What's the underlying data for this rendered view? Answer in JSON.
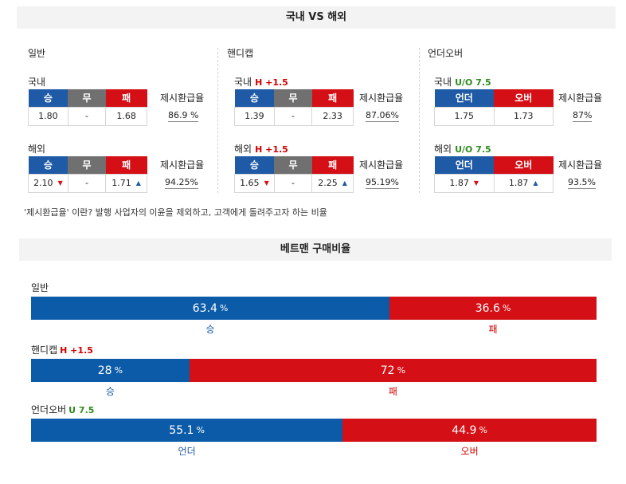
{
  "section1": {
    "title": "국내 VS 해외"
  },
  "columns": [
    {
      "header": "일반",
      "domestic": {
        "label": "국내",
        "sub": "",
        "headers": [
          "승",
          "무",
          "패"
        ],
        "values": [
          "1.80",
          "-",
          "1.68"
        ],
        "trends": [
          "",
          "",
          ""
        ],
        "return_label": "제시환급율",
        "return_value": "86.9 %"
      },
      "overseas": {
        "label": "해외",
        "sub": "",
        "headers": [
          "승",
          "무",
          "패"
        ],
        "values": [
          "2.10",
          "-",
          "1.71"
        ],
        "trends": [
          "down",
          "",
          "up"
        ],
        "return_label": "제시환급율",
        "return_value": "94.25%"
      }
    },
    {
      "header": "핸디캡",
      "domestic": {
        "label": "국내",
        "sub": "H +1.5",
        "headers": [
          "승",
          "무",
          "패"
        ],
        "values": [
          "1.39",
          "-",
          "2.33"
        ],
        "trends": [
          "",
          "",
          ""
        ],
        "return_label": "제시환급율",
        "return_value": "87.06%"
      },
      "overseas": {
        "label": "해외",
        "sub": "H +1.5",
        "headers": [
          "승",
          "무",
          "패"
        ],
        "values": [
          "1.65",
          "-",
          "2.25"
        ],
        "trends": [
          "down",
          "",
          "up"
        ],
        "return_label": "제시환급율",
        "return_value": "95.19%"
      }
    },
    {
      "header": "언더오버",
      "domestic": {
        "label": "국내",
        "sub": "U/O 7.5",
        "headers": [
          "언더",
          "오버"
        ],
        "values": [
          "1.75",
          "1.73"
        ],
        "trends": [
          "",
          ""
        ],
        "return_label": "제시환급율",
        "return_value": "87%"
      },
      "overseas": {
        "label": "해외",
        "sub": "U/O 7.5",
        "headers": [
          "언더",
          "오버"
        ],
        "values": [
          "1.87",
          "1.87"
        ],
        "trends": [
          "down",
          "up"
        ],
        "return_label": "제시환급율",
        "return_value": "93.5%"
      }
    }
  ],
  "note": "'제시환급율' 이란? 발행 사업자의 이윤을 제외하고, 고객에게 돌려주고자 하는 비율",
  "section2": {
    "title": "베트맨 구매비율"
  },
  "betting": [
    {
      "label": "일반",
      "sub": "",
      "left_value": 63.4,
      "right_value": 36.6,
      "unit": "%",
      "left_label": "승",
      "right_label": "패"
    },
    {
      "label": "핸디캡",
      "sub": "H +1.5",
      "left_value": 28,
      "right_value": 72,
      "unit": "%",
      "left_label": "승",
      "right_label": "패"
    },
    {
      "label": "언더오버",
      "sub": "U 7.5",
      "left_value": 55.1,
      "right_value": 44.9,
      "unit": "%",
      "left_label": "언더",
      "right_label": "오버"
    }
  ],
  "colors": {
    "win": "#1f5aa6",
    "draw": "#707070",
    "loss": "#d50f16",
    "bar_blue": "#0c5ba8",
    "bar_red": "#d50f16",
    "sub_green": "#2e8b1e"
  }
}
